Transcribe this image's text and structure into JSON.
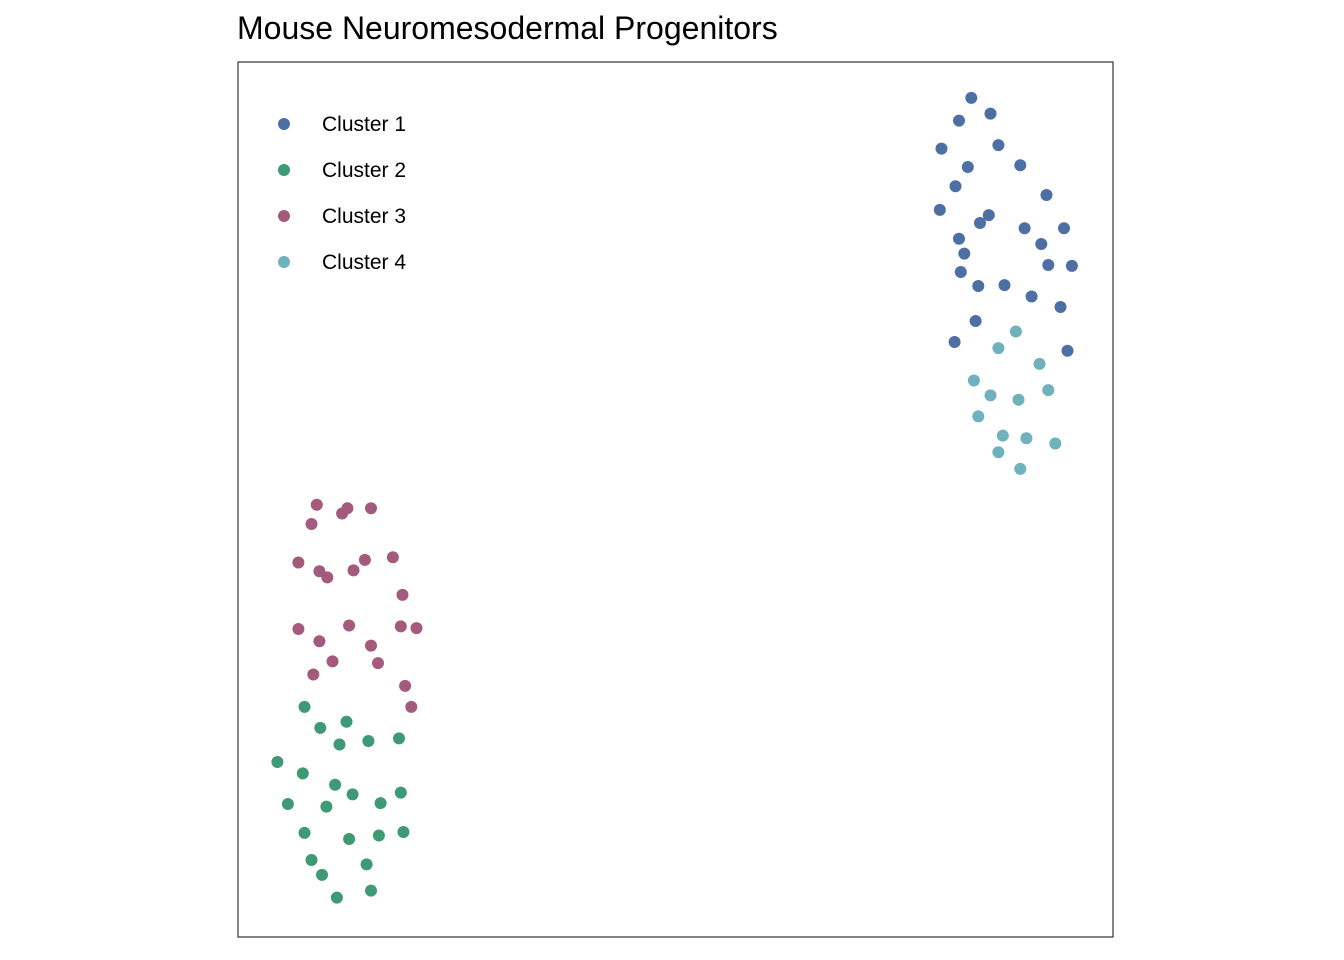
{
  "chart_data": {
    "type": "scatter",
    "title": "Mouse Neuromesodermal Progenitors",
    "xlabel": "",
    "ylabel": "",
    "xlim": [
      0,
      100
    ],
    "ylim": [
      0,
      100
    ],
    "axes_visible": false,
    "grid": false,
    "legend_position": "top-left",
    "series": [
      {
        "name": "Cluster 1",
        "color": "#4E6FA3",
        "points": [
          [
            83.8,
            95.9
          ],
          [
            82.4,
            93.3
          ],
          [
            86.0,
            94.1
          ],
          [
            80.4,
            90.1
          ],
          [
            86.9,
            90.5
          ],
          [
            83.4,
            88.0
          ],
          [
            89.4,
            88.2
          ],
          [
            82.0,
            85.8
          ],
          [
            92.4,
            84.8
          ],
          [
            80.2,
            83.1
          ],
          [
            85.8,
            82.5
          ],
          [
            84.8,
            81.6
          ],
          [
            89.9,
            81.0
          ],
          [
            94.4,
            81.0
          ],
          [
            82.4,
            79.8
          ],
          [
            91.8,
            79.2
          ],
          [
            83.0,
            78.1
          ],
          [
            92.6,
            76.8
          ],
          [
            95.3,
            76.7
          ],
          [
            82.6,
            76.0
          ],
          [
            84.6,
            74.4
          ],
          [
            87.6,
            74.5
          ],
          [
            90.7,
            73.2
          ],
          [
            94.0,
            72.0
          ],
          [
            84.3,
            70.4
          ],
          [
            81.9,
            68.0
          ],
          [
            94.8,
            67.0
          ]
        ]
      },
      {
        "name": "Cluster 2",
        "color": "#3E9A74",
        "points": [
          [
            7.6,
            26.3
          ],
          [
            9.4,
            23.9
          ],
          [
            12.4,
            24.6
          ],
          [
            11.6,
            22.0
          ],
          [
            14.9,
            22.4
          ],
          [
            18.4,
            22.7
          ],
          [
            4.5,
            20.0
          ],
          [
            7.4,
            18.7
          ],
          [
            11.1,
            17.4
          ],
          [
            13.1,
            16.3
          ],
          [
            18.6,
            16.5
          ],
          [
            16.3,
            15.3
          ],
          [
            5.7,
            15.2
          ],
          [
            10.1,
            14.9
          ],
          [
            7.6,
            11.9
          ],
          [
            12.7,
            11.2
          ],
          [
            16.1,
            11.6
          ],
          [
            18.9,
            12.0
          ],
          [
            8.4,
            8.8
          ],
          [
            14.7,
            8.3
          ],
          [
            9.6,
            7.1
          ],
          [
            11.3,
            4.5
          ],
          [
            15.2,
            5.3
          ]
        ]
      },
      {
        "name": "Cluster 3",
        "color": "#A45A7D",
        "points": [
          [
            9.0,
            49.4
          ],
          [
            12.5,
            49.0
          ],
          [
            15.2,
            49.0
          ],
          [
            8.4,
            47.2
          ],
          [
            11.9,
            48.4
          ],
          [
            6.9,
            42.8
          ],
          [
            9.3,
            41.8
          ],
          [
            10.2,
            41.1
          ],
          [
            13.2,
            41.9
          ],
          [
            14.5,
            43.1
          ],
          [
            17.7,
            43.4
          ],
          [
            18.8,
            39.1
          ],
          [
            6.9,
            35.2
          ],
          [
            12.7,
            35.6
          ],
          [
            18.6,
            35.5
          ],
          [
            20.4,
            35.3
          ],
          [
            9.3,
            33.8
          ],
          [
            15.2,
            33.3
          ],
          [
            10.8,
            31.5
          ],
          [
            16.0,
            31.3
          ],
          [
            8.6,
            30.0
          ],
          [
            19.1,
            28.7
          ],
          [
            19.8,
            26.3
          ]
        ]
      },
      {
        "name": "Cluster 4",
        "color": "#6FB1BD",
        "points": [
          [
            88.9,
            69.2
          ],
          [
            86.9,
            67.3
          ],
          [
            91.6,
            65.5
          ],
          [
            84.1,
            63.6
          ],
          [
            86.0,
            61.9
          ],
          [
            89.2,
            61.4
          ],
          [
            92.6,
            62.5
          ],
          [
            84.6,
            59.5
          ],
          [
            87.4,
            57.3
          ],
          [
            90.1,
            57.0
          ],
          [
            93.4,
            56.4
          ],
          [
            86.9,
            55.4
          ],
          [
            89.4,
            53.5
          ]
        ]
      }
    ]
  }
}
